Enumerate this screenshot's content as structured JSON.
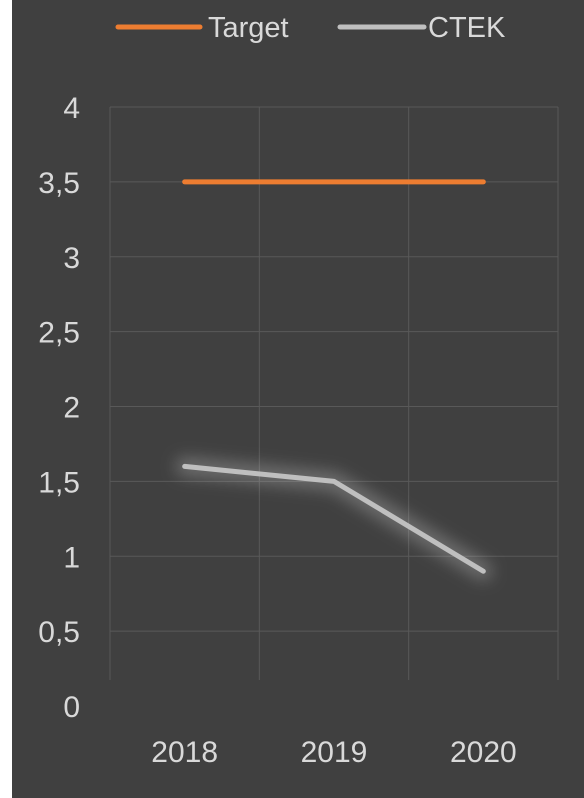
{
  "chart_data": {
    "type": "line",
    "title": "",
    "xlabel": "",
    "ylabel": "",
    "categories": [
      "2018",
      "2019",
      "2020"
    ],
    "y_tick_labels": [
      "0",
      "0,5",
      "1",
      "1,5",
      "2",
      "2,5",
      "3",
      "3,5",
      "4"
    ],
    "ylim": [
      0,
      4
    ],
    "y_step": 0.5,
    "grid": true,
    "legend_position": "top",
    "series": [
      {
        "name": "Target",
        "values": [
          3.5,
          3.5,
          3.5
        ],
        "color": "#ed7d31"
      },
      {
        "name": "CTEK",
        "values": [
          1.6,
          1.5,
          0.9
        ],
        "color": "#bfbfbf"
      }
    ],
    "colors": {
      "background": "#404040",
      "grid": "#595959",
      "text": "#d9d9d9"
    }
  }
}
